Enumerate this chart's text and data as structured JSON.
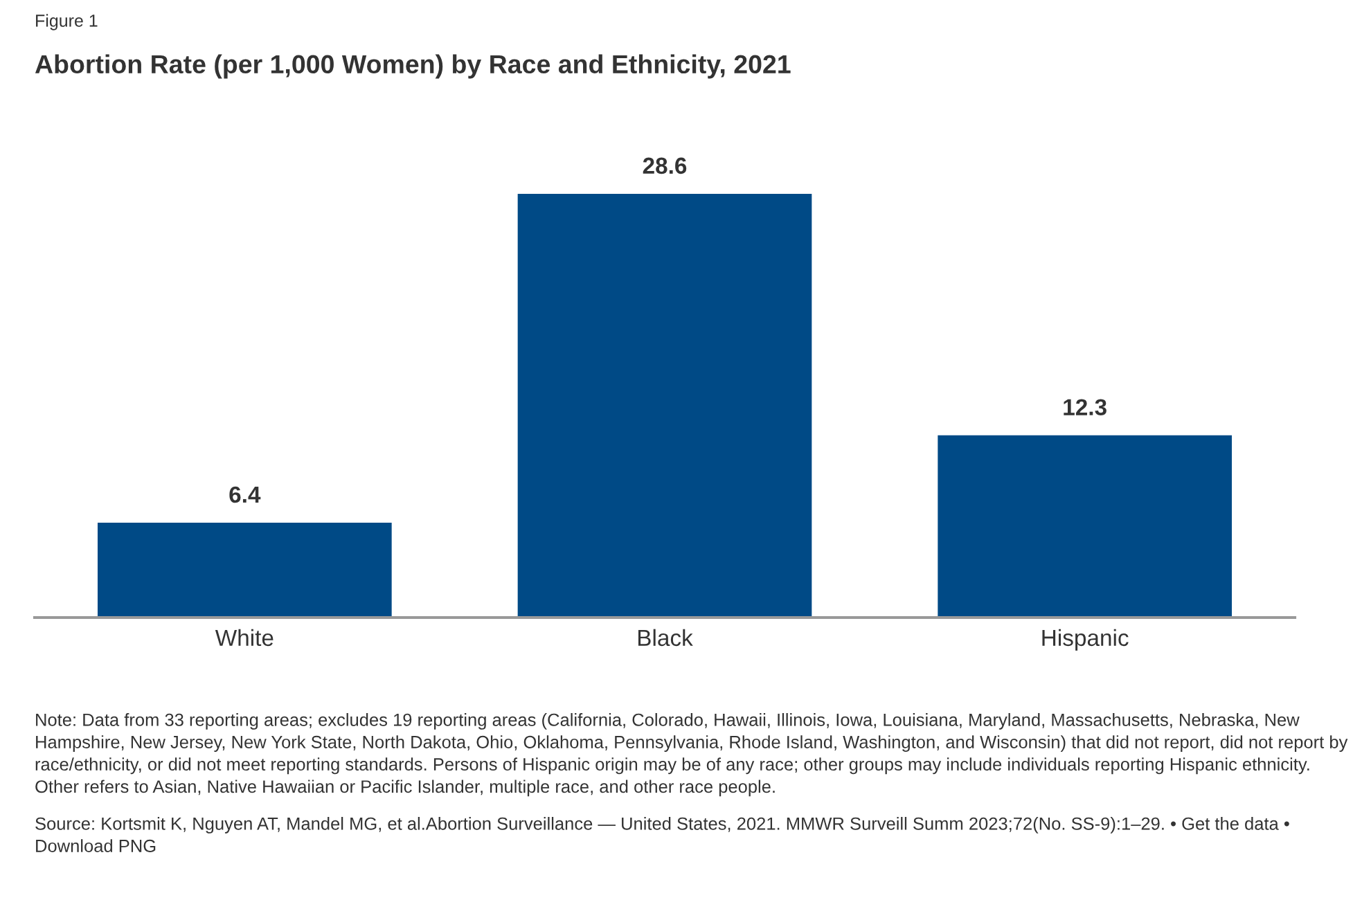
{
  "chart_data": {
    "type": "bar",
    "subtitle": "Figure 1",
    "title": "Abortion Rate (per 1,000 Women) by Race and Ethnicity, 2021",
    "categories": [
      "White",
      "Black",
      "Hispanic"
    ],
    "values": [
      6.4,
      28.6,
      12.3
    ],
    "color": "#004a86",
    "data_labels": true,
    "annotations": [
      "Note: Data from 33 reporting areas; excludes 19 reporting areas (California, Colorado, Hawaii, Illinois, Iowa, Louisiana, Maryland, Massachusetts, Nebraska, New Hampshire, New Jersey, New York State, North Dakota, Ohio, Oklahoma, Pennsylvania, Rhode Island, Washington, and Wisconsin) that did not report, did not report by race/ethnicity, or did not meet reporting standards. Persons of Hispanic origin may be of any race; other groups may include individuals reporting Hispanic ethnicity. Other refers to Asian, Native Hawaiian or Pacific Islander, multiple race, and other race people.",
      "Source: Kortsmit K, Nguyen AT, Mandel MG, et al.Abortion Surveillance — United States, 2021. MMWR Surveill Summ 2023;72(No. SS-9):1–29. • Get the data • Download PNG"
    ]
  }
}
